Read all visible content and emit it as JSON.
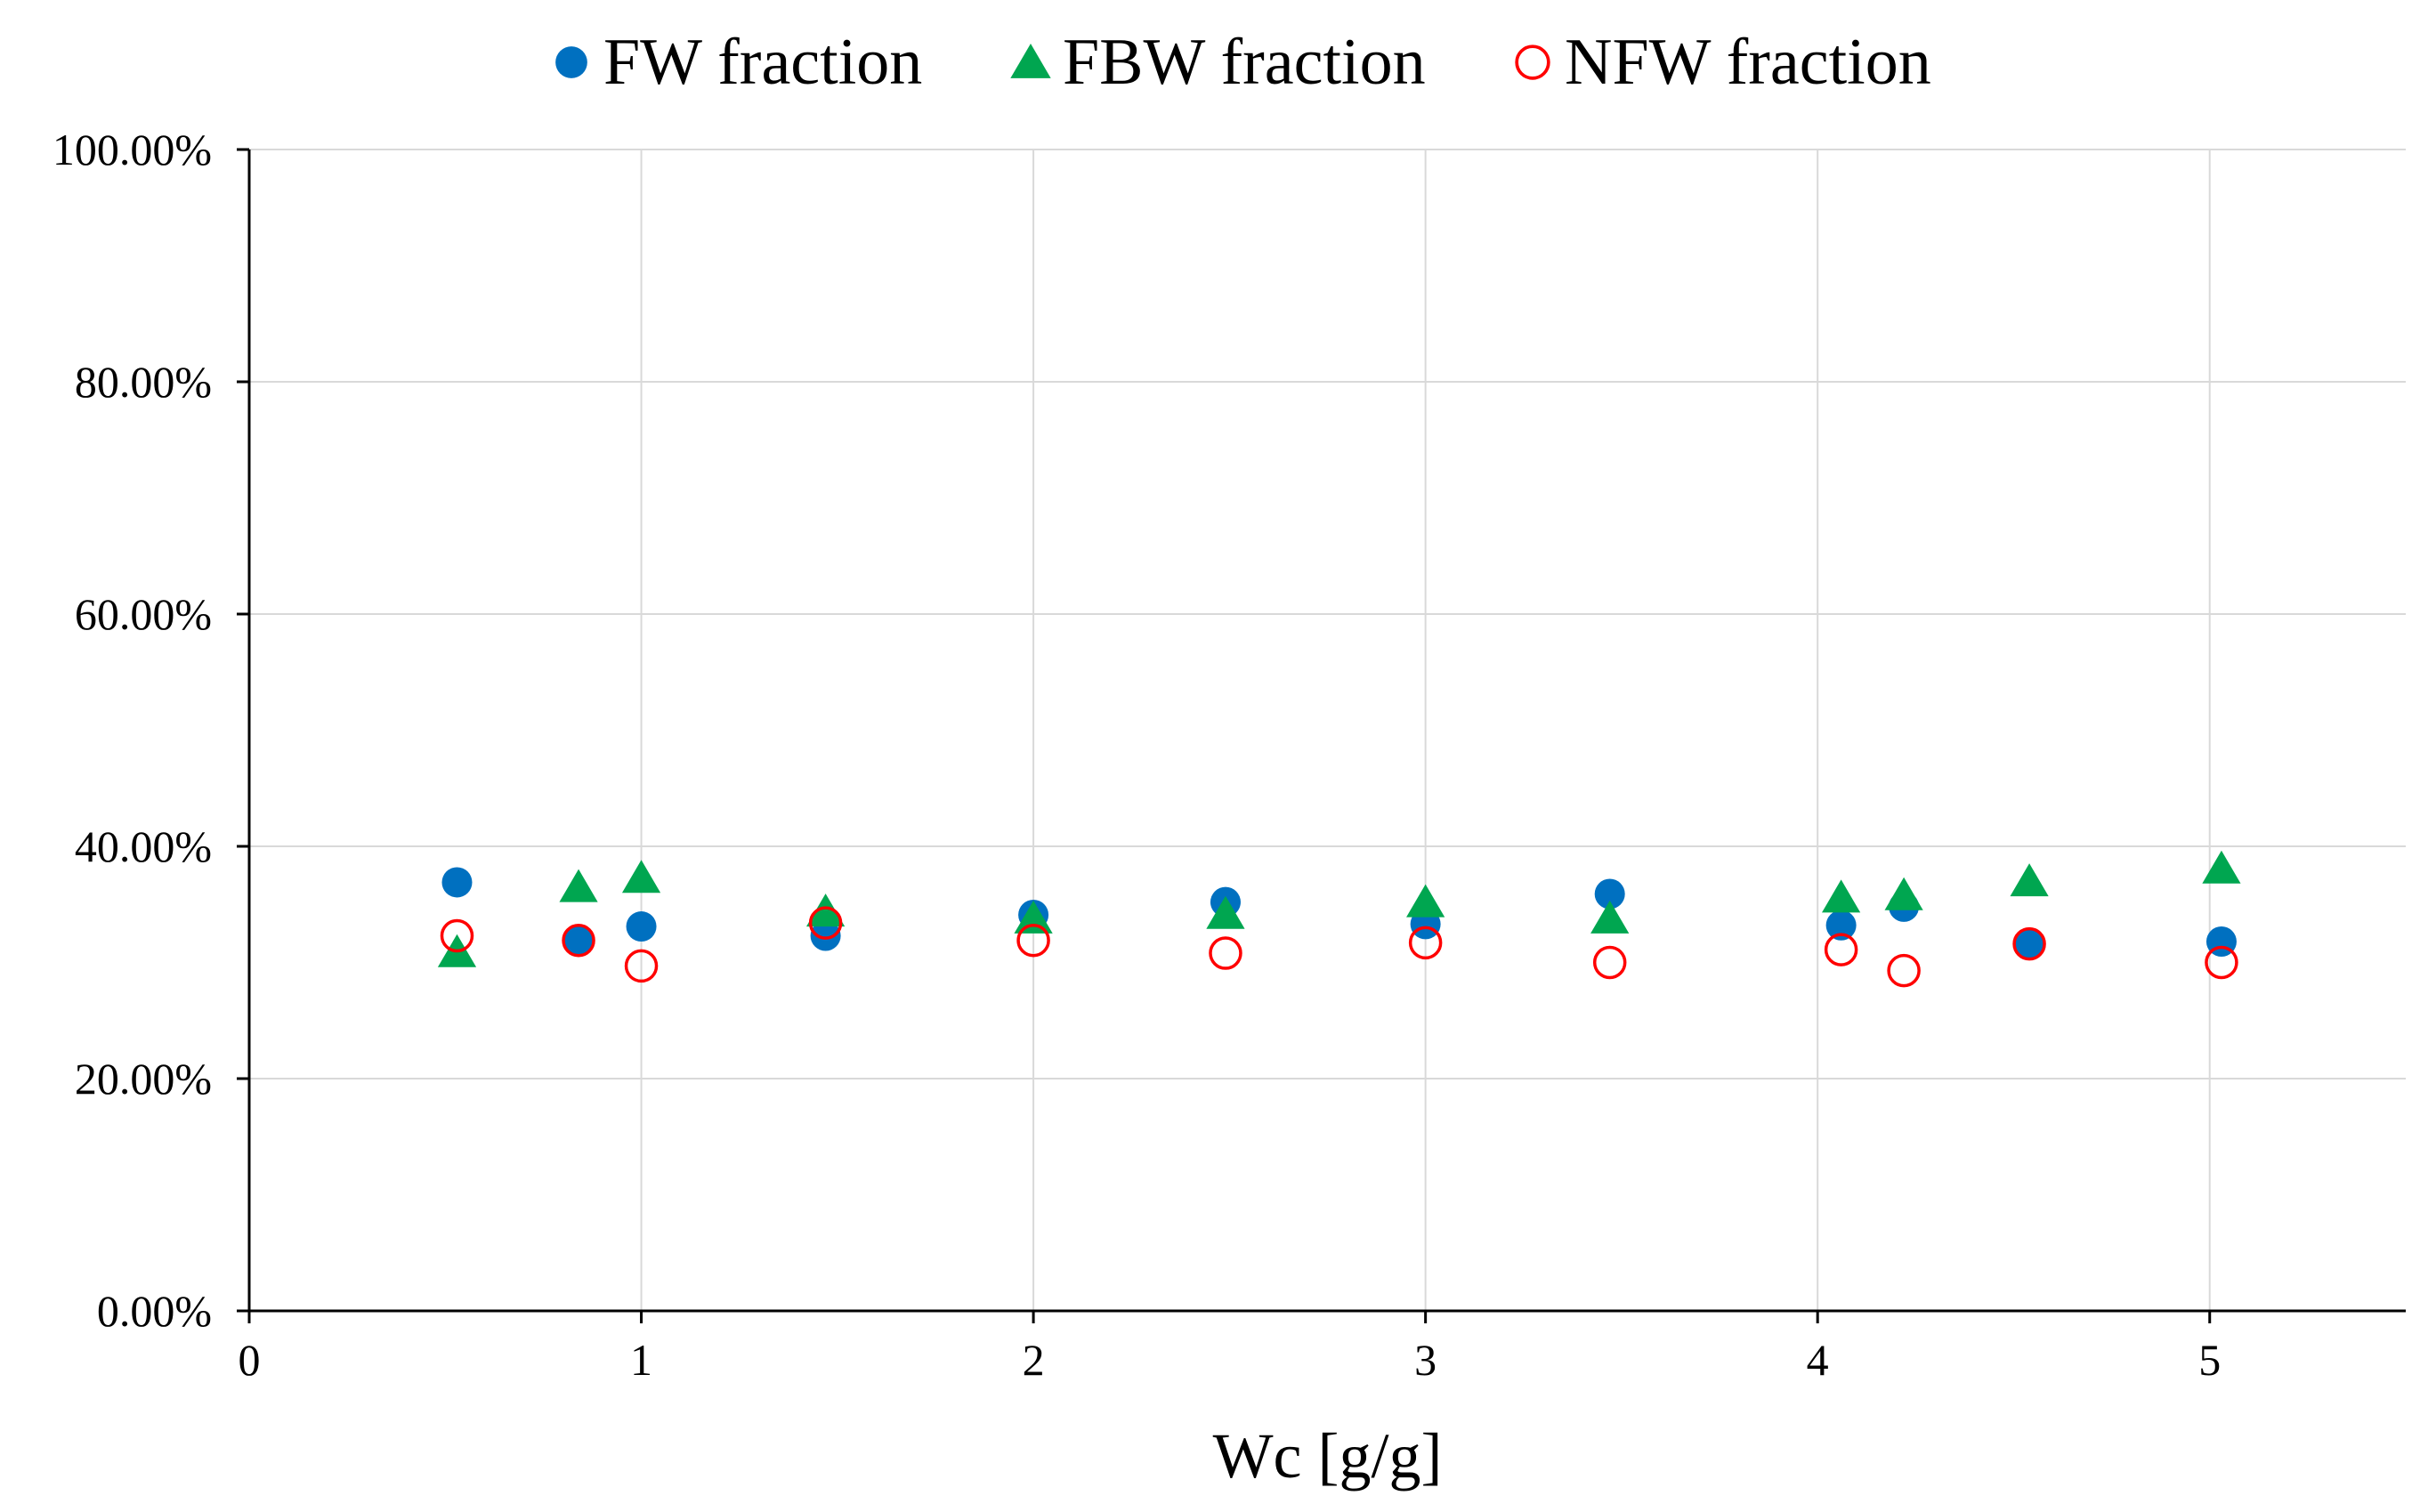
{
  "chart_data": {
    "type": "scatter",
    "title": "",
    "xlabel": "Wc [g/g]",
    "ylabel": "",
    "xlim": [
      0,
      5.5
    ],
    "ylim": [
      0,
      100
    ],
    "x_ticks": [
      0,
      1,
      2,
      3,
      4,
      5
    ],
    "x_tick_labels": [
      "0",
      "1",
      "2",
      "3",
      "4",
      "5"
    ],
    "y_ticks": [
      0,
      20,
      40,
      60,
      80,
      100
    ],
    "y_tick_labels": [
      "0.00%",
      "20.00%",
      "40.00%",
      "60.00%",
      "80.00%",
      "100.00%"
    ],
    "grid": true,
    "legend_position": "top",
    "series": [
      {
        "name": "FW fraction",
        "marker": "filled-circle",
        "color": "#0070c0",
        "x": [
          0.53,
          0.84,
          1.0,
          1.47,
          2.0,
          2.49,
          3.0,
          3.47,
          4.06,
          4.22,
          4.54,
          5.03
        ],
        "y": [
          36.9,
          31.8,
          33.1,
          32.3,
          34.1,
          35.2,
          33.3,
          35.9,
          33.2,
          34.8,
          31.5,
          31.8
        ]
      },
      {
        "name": "FBW fraction",
        "marker": "filled-triangle",
        "color": "#00a650",
        "x": [
          0.53,
          0.84,
          1.0,
          1.47,
          2.0,
          2.49,
          3.0,
          3.47,
          4.06,
          4.22,
          4.54,
          5.03
        ],
        "y": [
          30.9,
          36.5,
          37.3,
          34.4,
          33.8,
          34.2,
          35.2,
          33.8,
          35.6,
          35.8,
          37.0,
          38.1
        ]
      },
      {
        "name": "NFW fraction",
        "marker": "open-circle",
        "color": "#ff0000",
        "x": [
          0.53,
          0.84,
          1.0,
          1.47,
          2.0,
          2.49,
          3.0,
          3.47,
          4.06,
          4.22,
          4.54,
          5.03
        ],
        "y": [
          32.3,
          31.9,
          29.7,
          33.4,
          31.9,
          30.8,
          31.7,
          30.0,
          31.1,
          29.3,
          31.6,
          30.0
        ]
      }
    ]
  }
}
